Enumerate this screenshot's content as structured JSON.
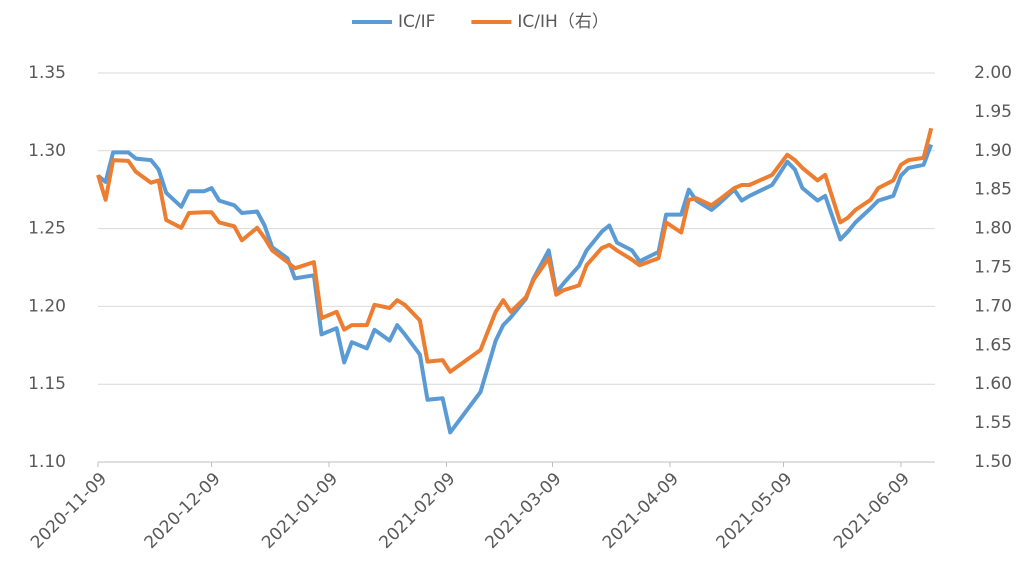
{
  "chart_data": {
    "type": "line",
    "x": [
      "2020-11-09",
      "2020-11-11",
      "2020-11-13",
      "2020-11-17",
      "2020-11-19",
      "2020-11-23",
      "2020-11-25",
      "2020-11-27",
      "2020-12-01",
      "2020-12-03",
      "2020-12-07",
      "2020-12-09",
      "2020-12-11",
      "2020-12-15",
      "2020-12-17",
      "2020-12-21",
      "2020-12-23",
      "2020-12-25",
      "2020-12-29",
      "2020-12-31",
      "2021-01-05",
      "2021-01-07",
      "2021-01-11",
      "2021-01-13",
      "2021-01-15",
      "2021-01-19",
      "2021-01-21",
      "2021-01-25",
      "2021-01-27",
      "2021-01-29",
      "2021-02-02",
      "2021-02-04",
      "2021-02-08",
      "2021-02-10",
      "2021-02-18",
      "2021-02-22",
      "2021-02-24",
      "2021-02-26",
      "2021-03-02",
      "2021-03-04",
      "2021-03-08",
      "2021-03-10",
      "2021-03-12",
      "2021-03-16",
      "2021-03-18",
      "2021-03-22",
      "2021-03-24",
      "2021-03-26",
      "2021-03-30",
      "2021-04-01",
      "2021-04-06",
      "2021-04-08",
      "2021-04-12",
      "2021-04-14",
      "2021-04-16",
      "2021-04-20",
      "2021-04-22",
      "2021-04-26",
      "2021-04-28",
      "2021-04-30",
      "2021-05-06",
      "2021-05-10",
      "2021-05-12",
      "2021-05-14",
      "2021-05-18",
      "2021-05-20",
      "2021-05-24",
      "2021-05-26",
      "2021-05-28",
      "2021-06-01",
      "2021-06-03",
      "2021-06-07",
      "2021-06-09",
      "2021-06-11",
      "2021-06-15",
      "2021-06-17"
    ],
    "series": [
      {
        "name": "IC/IF",
        "color": "#5b9bd5",
        "axis": "y",
        "values": [
          1.284,
          1.28,
          1.299,
          1.299,
          1.295,
          1.294,
          1.288,
          1.273,
          1.264,
          1.274,
          1.274,
          1.276,
          1.268,
          1.265,
          1.26,
          1.261,
          1.252,
          1.238,
          1.231,
          1.218,
          1.22,
          1.182,
          1.186,
          1.164,
          1.177,
          1.173,
          1.185,
          1.178,
          1.188,
          1.182,
          1.169,
          1.14,
          1.141,
          1.119,
          1.145,
          1.178,
          1.188,
          1.193,
          1.205,
          1.218,
          1.236,
          1.209,
          1.215,
          1.226,
          1.236,
          1.248,
          1.252,
          1.241,
          1.236,
          1.229,
          1.235,
          1.259,
          1.259,
          1.275,
          1.268,
          1.262,
          1.266,
          1.275,
          1.268,
          1.271,
          1.278,
          1.293,
          1.288,
          1.276,
          1.268,
          1.271,
          1.243,
          1.248,
          1.254,
          1.263,
          1.268,
          1.271,
          1.284,
          1.289,
          1.291,
          1.304
        ]
      },
      {
        "name": "IC/IH（右）",
        "color": "#ed7d31",
        "axis": "y2",
        "values": [
          1.869,
          1.837,
          1.888,
          1.887,
          1.873,
          1.859,
          1.862,
          1.811,
          1.801,
          1.82,
          1.821,
          1.821,
          1.808,
          1.803,
          1.785,
          1.801,
          1.788,
          1.772,
          1.757,
          1.749,
          1.757,
          1.685,
          1.693,
          1.67,
          1.676,
          1.676,
          1.702,
          1.698,
          1.708,
          1.702,
          1.682,
          1.629,
          1.631,
          1.616,
          1.644,
          1.693,
          1.708,
          1.693,
          1.712,
          1.734,
          1.762,
          1.715,
          1.721,
          1.727,
          1.753,
          1.775,
          1.779,
          1.772,
          1.76,
          1.753,
          1.762,
          1.808,
          1.795,
          1.837,
          1.839,
          1.83,
          1.837,
          1.852,
          1.856,
          1.856,
          1.869,
          1.895,
          1.888,
          1.878,
          1.862,
          1.869,
          1.808,
          1.814,
          1.824,
          1.837,
          1.852,
          1.862,
          1.882,
          1.888,
          1.891,
          1.929
        ]
      }
    ],
    "xlim": [
      "2020-11-09",
      "2021-06-18"
    ],
    "xticks": [
      "2020-11-09",
      "2020-12-09",
      "2021-01-09",
      "2021-02-09",
      "2021-03-09",
      "2021-04-09",
      "2021-05-09",
      "2021-06-09"
    ],
    "ylim": [
      1.1,
      1.35
    ],
    "yticks": [
      {
        "value": 1.1,
        "label": "1.10"
      },
      1.15,
      {
        "value": 1.2,
        "label": "1.20"
      },
      1.25,
      {
        "value": 1.3,
        "label": "1.30"
      },
      1.35
    ],
    "y2lim": [
      1.5,
      2.0
    ],
    "y2ticks": [
      {
        "value": 1.5,
        "label": "1.50"
      },
      1.55,
      {
        "value": 1.6,
        "label": "1.60"
      },
      1.65,
      {
        "value": 1.7,
        "label": "1.70"
      },
      1.75,
      {
        "value": 1.8,
        "label": "1.80"
      },
      1.85,
      {
        "value": 1.9,
        "label": "1.90"
      },
      1.95,
      {
        "value": 2.0,
        "label": "2.00"
      }
    ],
    "grid": true,
    "legend": "top"
  }
}
